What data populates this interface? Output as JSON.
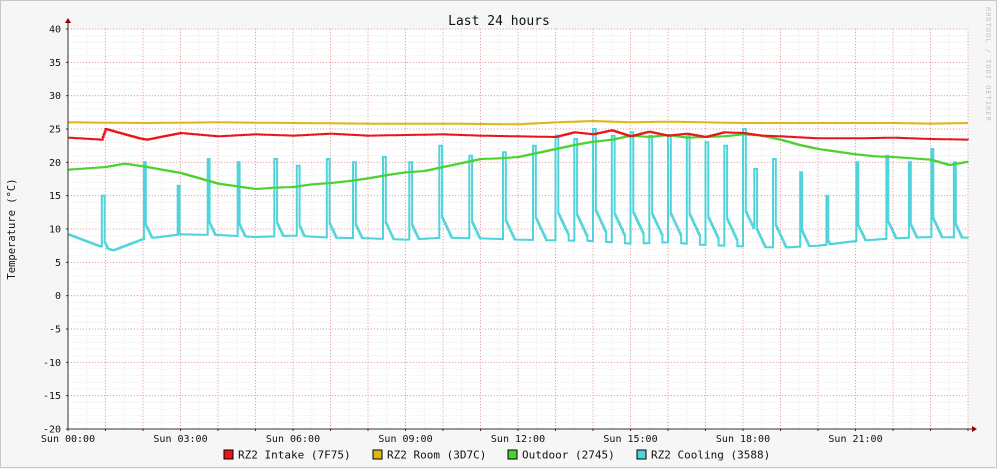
{
  "chart_data": {
    "type": "line",
    "title": "Last 24 hours",
    "ylabel": "Temperature (°C)",
    "watermark": "RRDTOOL / TOBI OETIKER",
    "ylim": [
      -20,
      40
    ],
    "yticks": [
      40,
      35,
      30,
      25,
      20,
      15,
      10,
      5,
      0,
      -5,
      -10,
      -15,
      -20
    ],
    "xlim_hours": [
      0,
      24
    ],
    "xticks": [
      {
        "hour": 0,
        "label": "Sun 00:00"
      },
      {
        "hour": 3,
        "label": "Sun 03:00"
      },
      {
        "hour": 6,
        "label": "Sun 06:00"
      },
      {
        "hour": 9,
        "label": "Sun 09:00"
      },
      {
        "hour": 12,
        "label": "Sun 12:00"
      },
      {
        "hour": 15,
        "label": "Sun 15:00"
      },
      {
        "hour": 18,
        "label": "Sun 18:00"
      },
      {
        "hour": 21,
        "label": "Sun 21:00"
      }
    ],
    "grid": true,
    "legend_position": "bottom",
    "series": [
      {
        "name": "RZ2 Intake (7F75)",
        "color": "#e8161a",
        "x": [
          0,
          0.9,
          1.0,
          1.9,
          2.1,
          3.0,
          4.0,
          5.0,
          6.0,
          7.0,
          8.0,
          9.0,
          10.0,
          11.0,
          12.0,
          13.0,
          13.5,
          14.0,
          14.5,
          15.0,
          15.5,
          16.0,
          16.5,
          17.0,
          17.5,
          18.0,
          18.5,
          19.0,
          20.0,
          21.0,
          22.0,
          23.0,
          24.0
        ],
        "values": [
          23.7,
          23.4,
          25.0,
          23.6,
          23.4,
          24.4,
          23.9,
          24.2,
          24.0,
          24.3,
          24.0,
          24.1,
          24.2,
          24.0,
          23.9,
          23.8,
          24.5,
          24.2,
          24.8,
          23.9,
          24.6,
          24.0,
          24.3,
          23.8,
          24.5,
          24.4,
          24.0,
          23.9,
          23.6,
          23.6,
          23.7,
          23.5,
          23.4
        ]
      },
      {
        "name": "RZ2 Room (3D7C)",
        "color": "#e2b516",
        "x": [
          0,
          2,
          4,
          6,
          8,
          10,
          12,
          13,
          14,
          15,
          16,
          17,
          18,
          19,
          20,
          21,
          22,
          23,
          24
        ],
        "values": [
          26.0,
          25.9,
          26.0,
          25.9,
          25.8,
          25.8,
          25.7,
          26.0,
          26.2,
          26.0,
          26.1,
          26.0,
          25.9,
          25.9,
          25.9,
          25.9,
          25.9,
          25.8,
          25.9
        ]
      },
      {
        "name": "Outdoor (2745)",
        "color": "#4bd230",
        "x": [
          0,
          0.5,
          1,
          1.5,
          2,
          2.5,
          3,
          3.5,
          4,
          4.5,
          5,
          5.5,
          6,
          6.5,
          7,
          7.5,
          8,
          8.5,
          9,
          9.5,
          10,
          10.5,
          11,
          11.5,
          12,
          12.5,
          13,
          13.5,
          14,
          14.5,
          15,
          15.5,
          16,
          16.5,
          17,
          17.5,
          18,
          18.5,
          19,
          19.5,
          20,
          20.5,
          21,
          21.5,
          22,
          22.5,
          23,
          23.5,
          24
        ],
        "values": [
          18.9,
          19.1,
          19.3,
          19.8,
          19.4,
          18.9,
          18.4,
          17.6,
          16.8,
          16.4,
          16.0,
          16.2,
          16.3,
          16.7,
          16.9,
          17.2,
          17.6,
          18.1,
          18.5,
          18.7,
          19.3,
          19.9,
          20.5,
          20.6,
          20.8,
          21.4,
          22.0,
          22.6,
          23.1,
          23.4,
          24.0,
          23.8,
          24.1,
          23.7,
          23.8,
          23.9,
          24.2,
          24.0,
          23.4,
          22.6,
          22.0,
          21.6,
          21.2,
          20.9,
          20.8,
          20.6,
          20.4,
          19.6,
          20.1
        ]
      },
      {
        "name": "RZ2 Cooling (3588)",
        "color": "#4fd4dc",
        "baseline_x": [
          0,
          0.8,
          1.2,
          2.0,
          3.0,
          4.0,
          5.0,
          6.0,
          7.0,
          8.0,
          9.0,
          10.0,
          11.0,
          12.0,
          13.0,
          14.0,
          15.0,
          16.0,
          17.0,
          18.0,
          19.0,
          20.0,
          21.0,
          22.0,
          23.0,
          24.0
        ],
        "baseline": [
          9.2,
          7.5,
          6.8,
          8.5,
          9.2,
          9.1,
          8.8,
          9.0,
          8.7,
          8.6,
          8.4,
          8.7,
          8.6,
          8.4,
          8.3,
          8.2,
          7.8,
          8.0,
          7.6,
          7.4,
          7.2,
          7.5,
          8.2,
          8.6,
          8.8,
          8.7
        ],
        "spike_hours": [
          0.9,
          2.0,
          2.9,
          3.7,
          4.5,
          5.5,
          6.1,
          6.9,
          7.6,
          8.4,
          9.1,
          9.9,
          10.7,
          11.6,
          12.4,
          13.0,
          13.5,
          14.0,
          14.5,
          15.0,
          15.5,
          16.0,
          16.5,
          17.0,
          17.5,
          18.0,
          18.3,
          18.8,
          19.5,
          20.2,
          21.0,
          21.8,
          22.4,
          23.0,
          23.6
        ],
        "spike_values": [
          15.0,
          20.0,
          16.5,
          20.5,
          20.0,
          20.5,
          19.5,
          20.5,
          20.0,
          20.8,
          20.0,
          22.5,
          21.0,
          21.5,
          22.5,
          24.0,
          23.5,
          25.0,
          24.0,
          24.5,
          24.0,
          24.0,
          24.0,
          23.0,
          22.5,
          25.0,
          19.0,
          20.5,
          18.5,
          15.0,
          20.0,
          21.0,
          20.0,
          22.0,
          20.0
        ]
      }
    ]
  }
}
